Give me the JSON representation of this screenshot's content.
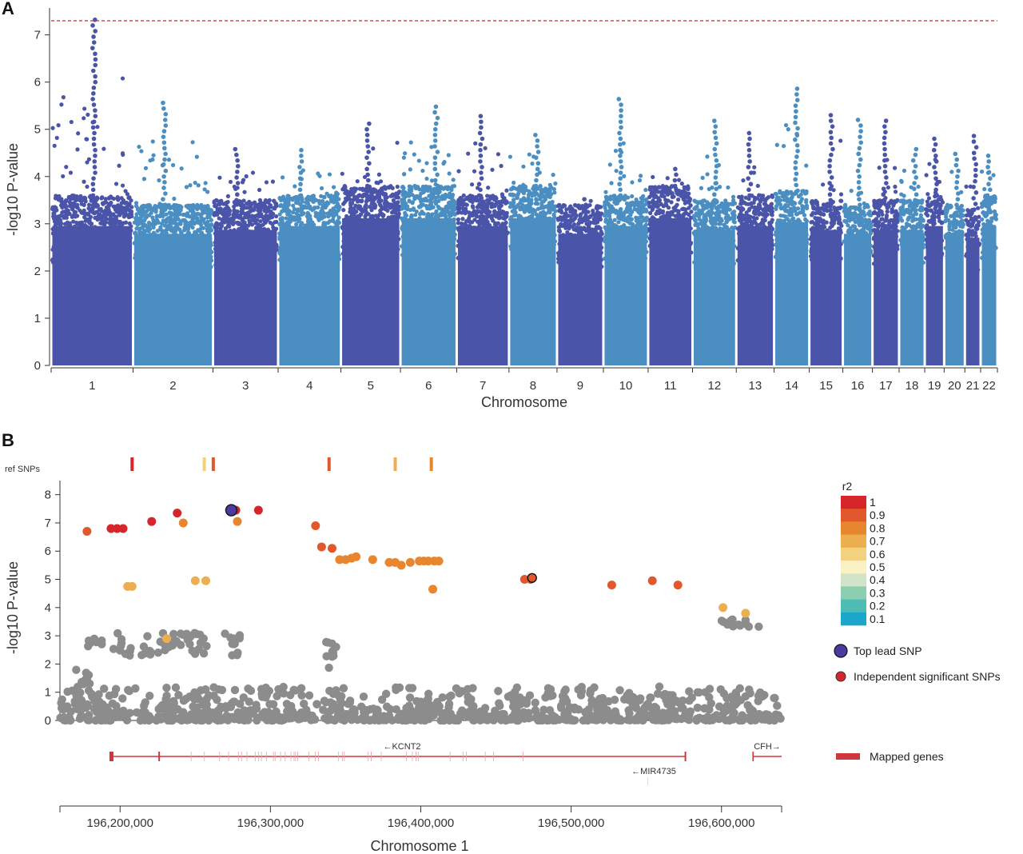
{
  "colors": {
    "dark_blue": "#4a54a8",
    "light_blue": "#4a8ec2",
    "threshold_red": "#d9383a",
    "grey": "#8c8c8c",
    "gene_red": "#d0363c",
    "lead_purple": "#4b3aa0"
  },
  "panel_a": {
    "label": "A",
    "chart_data": {
      "type": "scatter",
      "title": "",
      "xlabel": "Chromosome",
      "ylabel": "-log10 P-value",
      "ylim": [
        0,
        7.4
      ],
      "yticks": [
        0,
        1,
        2,
        3,
        4,
        5,
        6,
        7
      ],
      "genome_wide_threshold": 7.3,
      "chromosomes": [
        {
          "name": "1",
          "start": 0,
          "length": 249,
          "max": 7.4,
          "dense": 3.6
        },
        {
          "name": "2",
          "start": 249,
          "length": 243,
          "max": 5.6,
          "dense": 3.4
        },
        {
          "name": "3",
          "start": 492,
          "length": 198,
          "max": 4.7,
          "dense": 3.5
        },
        {
          "name": "4",
          "start": 690,
          "length": 191,
          "max": 4.6,
          "dense": 3.6
        },
        {
          "name": "5",
          "start": 881,
          "length": 181,
          "max": 5.2,
          "dense": 3.8
        },
        {
          "name": "6",
          "start": 1062,
          "length": 171,
          "max": 5.5,
          "dense": 3.8
        },
        {
          "name": "7",
          "start": 1233,
          "length": 159,
          "max": 5.3,
          "dense": 3.6
        },
        {
          "name": "8",
          "start": 1392,
          "length": 146,
          "max": 4.9,
          "dense": 3.8
        },
        {
          "name": "9",
          "start": 1538,
          "length": 141,
          "max": 3.6,
          "dense": 3.4
        },
        {
          "name": "10",
          "start": 1679,
          "length": 136,
          "max": 5.7,
          "dense": 3.6
        },
        {
          "name": "11",
          "start": 1815,
          "length": 135,
          "max": 4.2,
          "dense": 3.8
        },
        {
          "name": "12",
          "start": 1950,
          "length": 133,
          "max": 5.3,
          "dense": 3.5
        },
        {
          "name": "13",
          "start": 2083,
          "length": 115,
          "max": 5.0,
          "dense": 3.6
        },
        {
          "name": "14",
          "start": 2198,
          "length": 107,
          "max": 5.9,
          "dense": 3.7
        },
        {
          "name": "15",
          "start": 2305,
          "length": 102,
          "max": 5.4,
          "dense": 3.5
        },
        {
          "name": "16",
          "start": 2407,
          "length": 90,
          "max": 5.3,
          "dense": 3.4
        },
        {
          "name": "17",
          "start": 2497,
          "length": 81,
          "max": 5.2,
          "dense": 3.5
        },
        {
          "name": "18",
          "start": 2578,
          "length": 78,
          "max": 4.7,
          "dense": 3.5
        },
        {
          "name": "19",
          "start": 2656,
          "length": 59,
          "max": 4.9,
          "dense": 3.6
        },
        {
          "name": "20",
          "start": 2715,
          "length": 63,
          "max": 4.5,
          "dense": 3.4
        },
        {
          "name": "21",
          "start": 2778,
          "length": 48,
          "max": 4.9,
          "dense": 3.3
        },
        {
          "name": "22",
          "start": 2826,
          "length": 51,
          "max": 4.5,
          "dense": 3.6
        }
      ],
      "x_total": 2877
    }
  },
  "panel_b": {
    "label": "B",
    "ref_snps_label": "ref SNPs",
    "legend_title": "r2",
    "legend_levels": [
      {
        "label": "1",
        "color": "#d7262b"
      },
      {
        "label": "0.9",
        "color": "#e0582b"
      },
      {
        "label": "0.8",
        "color": "#e8862f"
      },
      {
        "label": "0.7",
        "color": "#ecae4e"
      },
      {
        "label": "0.6",
        "color": "#f2d27f"
      },
      {
        "label": "0.5",
        "color": "#faf2c4"
      },
      {
        "label": "0.4",
        "color": "#cfe4c8"
      },
      {
        "label": "0.3",
        "color": "#8ccfb0"
      },
      {
        "label": "0.2",
        "color": "#4fbcb4"
      },
      {
        "label": "0.1",
        "color": "#1ba6cb"
      }
    ],
    "legend_lead": "Top lead SNP",
    "legend_independent": "Independent significant SNPs",
    "legend_genes": "Mapped genes",
    "genes": [
      {
        "name": "←KCNT2",
        "start": 196194000,
        "end": 196576000
      },
      {
        "name": "←MIR4735",
        "start": 196551000,
        "end": 196551500
      },
      {
        "name": "CFH→",
        "start": 196621000,
        "end": 196640000
      }
    ],
    "chart_data": {
      "type": "scatter",
      "xlabel": "Chromosome 1",
      "ylabel": "-log10 P-value",
      "xlim": [
        196160000,
        196640000
      ],
      "ylim": [
        0,
        8.5
      ],
      "xticks": [
        196200000,
        196300000,
        196400000,
        196500000,
        196600000
      ],
      "xtick_labels": [
        "196,200,000",
        "196,300,000",
        "196,400,000",
        "196,500,000",
        "196,600,000"
      ],
      "yticks": [
        0,
        1,
        2,
        3,
        4,
        5,
        6,
        7,
        8
      ],
      "ref_snps": [
        {
          "x": 196208000,
          "r2": 1.0
        },
        {
          "x": 196256000,
          "r2": 0.6
        },
        {
          "x": 196262000,
          "r2": 0.9
        },
        {
          "x": 196339000,
          "r2": 0.9
        },
        {
          "x": 196383000,
          "r2": 0.7
        },
        {
          "x": 196407000,
          "r2": 0.8
        }
      ],
      "colored_snps": [
        {
          "x": 196178000,
          "y": 6.7,
          "r2": 0.9
        },
        {
          "x": 196194000,
          "y": 6.8,
          "r2": 1.0
        },
        {
          "x": 196198000,
          "y": 6.8,
          "r2": 1.0
        },
        {
          "x": 196202000,
          "y": 6.8,
          "r2": 1.0
        },
        {
          "x": 196221000,
          "y": 7.05,
          "r2": 1.0
        },
        {
          "x": 196238000,
          "y": 7.35,
          "r2": 1.0
        },
        {
          "x": 196242000,
          "y": 7.0,
          "r2": 0.8
        },
        {
          "x": 196278000,
          "y": 7.05,
          "r2": 0.8
        },
        {
          "x": 196277000,
          "y": 7.45,
          "r2": 1.0
        },
        {
          "x": 196292000,
          "y": 7.45,
          "r2": 1.0
        },
        {
          "x": 196205000,
          "y": 4.75,
          "r2": 0.7
        },
        {
          "x": 196208000,
          "y": 4.75,
          "r2": 0.7
        },
        {
          "x": 196250000,
          "y": 4.95,
          "r2": 0.7
        },
        {
          "x": 196257000,
          "y": 4.95,
          "r2": 0.7
        },
        {
          "x": 196231000,
          "y": 2.9,
          "r2": 0.7
        },
        {
          "x": 196330000,
          "y": 6.9,
          "r2": 0.9
        },
        {
          "x": 196334000,
          "y": 6.15,
          "r2": 0.9
        },
        {
          "x": 196341000,
          "y": 6.1,
          "r2": 0.9
        },
        {
          "x": 196346000,
          "y": 5.7,
          "r2": 0.8
        },
        {
          "x": 196350000,
          "y": 5.7,
          "r2": 0.8
        },
        {
          "x": 196354000,
          "y": 5.75,
          "r2": 0.8
        },
        {
          "x": 196357000,
          "y": 5.8,
          "r2": 0.8
        },
        {
          "x": 196368000,
          "y": 5.7,
          "r2": 0.8
        },
        {
          "x": 196379000,
          "y": 5.6,
          "r2": 0.8
        },
        {
          "x": 196383000,
          "y": 5.6,
          "r2": 0.8
        },
        {
          "x": 196387000,
          "y": 5.5,
          "r2": 0.8
        },
        {
          "x": 196393000,
          "y": 5.6,
          "r2": 0.8
        },
        {
          "x": 196399000,
          "y": 5.65,
          "r2": 0.8
        },
        {
          "x": 196402000,
          "y": 5.65,
          "r2": 0.8
        },
        {
          "x": 196405000,
          "y": 5.65,
          "r2": 0.8
        },
        {
          "x": 196409000,
          "y": 5.65,
          "r2": 0.8
        },
        {
          "x": 196412000,
          "y": 5.65,
          "r2": 0.8
        },
        {
          "x": 196408000,
          "y": 4.65,
          "r2": 0.8
        },
        {
          "x": 196469000,
          "y": 5.0,
          "r2": 0.9
        },
        {
          "x": 196473000,
          "y": 5.0,
          "r2": 0.9
        },
        {
          "x": 196527000,
          "y": 4.8,
          "r2": 0.9
        },
        {
          "x": 196554000,
          "y": 4.95,
          "r2": 0.9
        },
        {
          "x": 196571000,
          "y": 4.8,
          "r2": 0.9
        },
        {
          "x": 196601000,
          "y": 4.0,
          "r2": 0.7
        },
        {
          "x": 196616000,
          "y": 3.8,
          "r2": 0.7
        }
      ],
      "lead_snp": {
        "x": 196274000,
        "y": 7.45
      },
      "independent_snps": [
        {
          "x": 196474000,
          "y": 5.05
        }
      ]
    }
  }
}
